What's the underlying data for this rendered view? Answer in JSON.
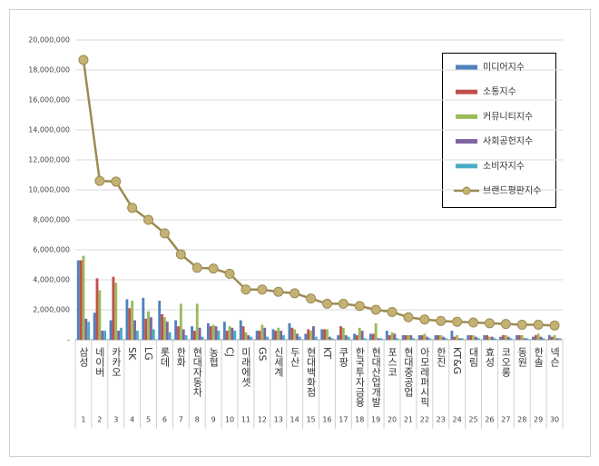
{
  "chart_data": {
    "type": "bar",
    "categories": [
      "삼성",
      "네이버",
      "카카오",
      "SK",
      "LG",
      "롯데",
      "한화",
      "현대자동차",
      "농협",
      "CJ",
      "미래에셋",
      "GS",
      "신세계",
      "두산",
      "현대백화점",
      "KT",
      "쿠팡",
      "한국투자금융",
      "현대산업개발",
      "포스코",
      "현대중공업",
      "아모레퍼시픽",
      "한진",
      "KT&G",
      "대림",
      "효성",
      "코오롱",
      "동원",
      "한솔",
      "넥슨"
    ],
    "ranks": [
      1,
      2,
      3,
      4,
      5,
      6,
      7,
      8,
      9,
      10,
      11,
      12,
      13,
      14,
      15,
      16,
      17,
      18,
      19,
      20,
      21,
      22,
      23,
      24,
      25,
      26,
      27,
      28,
      29,
      30
    ],
    "ylim": [
      0,
      20000000
    ],
    "yticks": [
      {
        "value": 0,
        "label": "-"
      },
      {
        "value": 2000000,
        "label": "2,000,000"
      },
      {
        "value": 4000000,
        "label": "4,000,000"
      },
      {
        "value": 6000000,
        "label": "6,000,000"
      },
      {
        "value": 8000000,
        "label": "8,000,000"
      },
      {
        "value": 10000000,
        "label": "10,000,000"
      },
      {
        "value": 12000000,
        "label": "12,000,000"
      },
      {
        "value": 14000000,
        "label": "14,000,000"
      },
      {
        "value": 16000000,
        "label": "16,000,000"
      },
      {
        "value": 18000000,
        "label": "18,000,000"
      },
      {
        "value": 20000000,
        "label": "20,000,000"
      }
    ],
    "grid": true,
    "series": [
      {
        "name": "미디어지수",
        "color": "#4f81bd",
        "values": [
          5300000,
          1800000,
          1300000,
          2700000,
          2800000,
          2600000,
          1300000,
          900000,
          1100000,
          1200000,
          1300000,
          600000,
          700000,
          1100000,
          400000,
          700000,
          300000,
          400000,
          400000,
          600000,
          300000,
          300000,
          300000,
          600000,
          300000,
          300000,
          200000,
          300000,
          200000,
          300000
        ]
      },
      {
        "name": "소통지수",
        "color": "#c0504d",
        "values": [
          5300000,
          4100000,
          4200000,
          2100000,
          1400000,
          1700000,
          900000,
          600000,
          900000,
          600000,
          900000,
          600000,
          600000,
          800000,
          700000,
          700000,
          900000,
          300000,
          400000,
          300000,
          300000,
          300000,
          300000,
          200000,
          300000,
          300000,
          300000,
          300000,
          300000,
          200000
        ]
      },
      {
        "name": "커뮤니티지수",
        "color": "#9bbb59",
        "values": [
          5600000,
          3300000,
          3800000,
          2600000,
          1900000,
          1500000,
          2400000,
          2400000,
          1000000,
          900000,
          500000,
          1000000,
          800000,
          700000,
          600000,
          700000,
          800000,
          800000,
          1100000,
          500000,
          300000,
          400000,
          300000,
          300000,
          300000,
          200000,
          300000,
          300000,
          400000,
          300000
        ]
      },
      {
        "name": "사회공헌지수",
        "color": "#8064a2",
        "values": [
          1400000,
          600000,
          600000,
          1300000,
          1500000,
          1200000,
          700000,
          800000,
          900000,
          800000,
          300000,
          800000,
          600000,
          400000,
          900000,
          200000,
          300000,
          600000,
          100000,
          400000,
          300000,
          200000,
          200000,
          100000,
          200000,
          200000,
          200000,
          100000,
          200000,
          100000
        ]
      },
      {
        "name": "소비자지수",
        "color": "#4bacc6",
        "values": [
          1200000,
          600000,
          800000,
          600000,
          700000,
          500000,
          300000,
          200000,
          600000,
          600000,
          200000,
          200000,
          300000,
          200000,
          200000,
          100000,
          200000,
          100000,
          100000,
          100000,
          100000,
          100000,
          100000,
          100000,
          100000,
          100000,
          100000,
          100000,
          100000,
          100000
        ]
      },
      {
        "name": "브랜드평판지수",
        "color": "#9c8b52",
        "type": "line",
        "values": [
          18670000,
          10600000,
          10550000,
          8800000,
          8000000,
          7100000,
          5700000,
          4800000,
          4750000,
          4400000,
          3350000,
          3350000,
          3200000,
          3100000,
          2750000,
          2400000,
          2400000,
          2250000,
          2000000,
          1850000,
          1500000,
          1350000,
          1250000,
          1200000,
          1150000,
          1100000,
          1050000,
          1000000,
          1000000,
          950000
        ]
      }
    ]
  }
}
